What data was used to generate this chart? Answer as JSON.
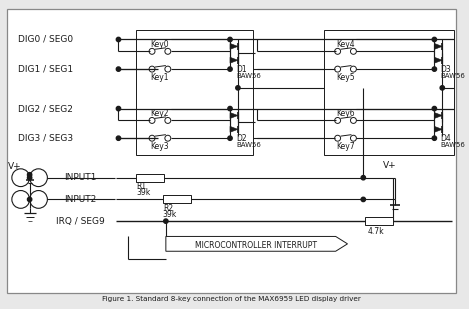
{
  "title": "Figure 1. Standard 8-key connection of the MAX6959 LED display driver",
  "bg_color": "#e8e8e8",
  "line_color": "#1a1a1a",
  "labels_left": [
    "DIG0 / SEG0",
    "DIG1 / SEG1",
    "DIG2 / SEG2",
    "DIG3 / SEG3"
  ],
  "labels_input": [
    "INPUT1",
    "INPUT2",
    "IRQ / SEG9"
  ],
  "diode_names": [
    "D1",
    "D2",
    "D3",
    "D4"
  ],
  "key_labels": [
    "Key0",
    "Key1",
    "Key2",
    "Key3",
    "Key4",
    "Key5",
    "Key6",
    "Key7"
  ],
  "resistor_labels": [
    "R1",
    "R2",
    "4.7k"
  ],
  "resistor_vals": [
    "39k",
    "39k",
    ""
  ],
  "baw56": "BAW56",
  "vplus": "V+",
  "microcontroller_label": "MICROCONTROLLER INTERRUPT",
  "inner_bg": "#ffffff"
}
